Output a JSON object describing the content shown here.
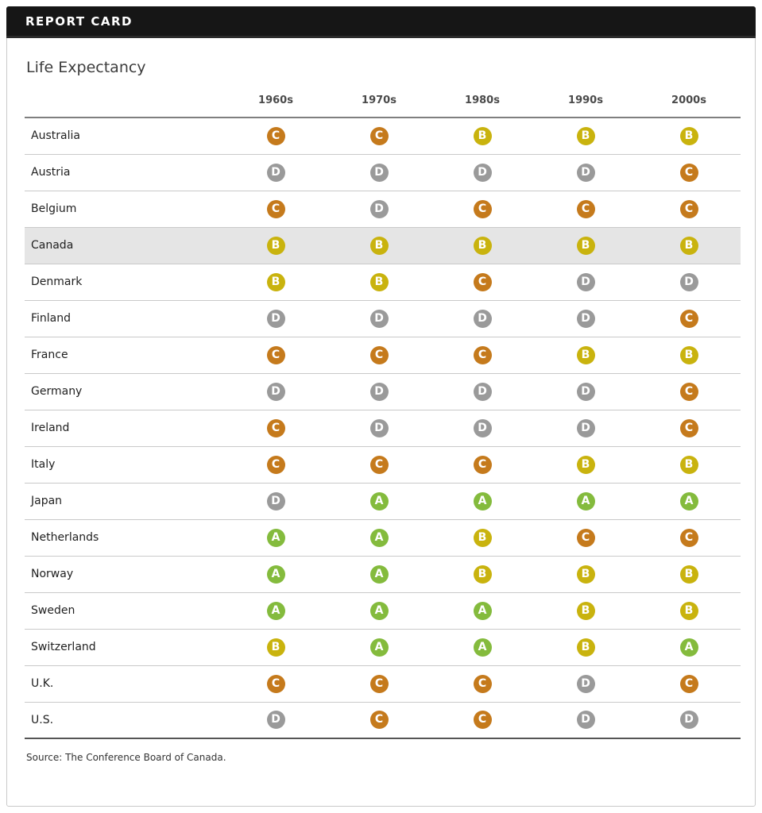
{
  "header": {
    "title": "REPORT CARD"
  },
  "card": {
    "title": "Life Expectancy",
    "source": "Source: The Conference Board of Canada."
  },
  "grade_colors": {
    "A": "#84BB3D",
    "B": "#C9B30E",
    "C": "#C57A1C",
    "D": "#9A9A9A"
  },
  "chart_data": {
    "type": "table",
    "title": "Life Expectancy",
    "columns": [
      "1960s",
      "1970s",
      "1980s",
      "1990s",
      "2000s"
    ],
    "rows": [
      {
        "country": "Australia",
        "grades": [
          "C",
          "C",
          "B",
          "B",
          "B"
        ],
        "highlighted": false
      },
      {
        "country": "Austria",
        "grades": [
          "D",
          "D",
          "D",
          "D",
          "C"
        ],
        "highlighted": false
      },
      {
        "country": "Belgium",
        "grades": [
          "C",
          "D",
          "C",
          "C",
          "C"
        ],
        "highlighted": false
      },
      {
        "country": "Canada",
        "grades": [
          "B",
          "B",
          "B",
          "B",
          "B"
        ],
        "highlighted": true
      },
      {
        "country": "Denmark",
        "grades": [
          "B",
          "B",
          "C",
          "D",
          "D"
        ],
        "highlighted": false
      },
      {
        "country": "Finland",
        "grades": [
          "D",
          "D",
          "D",
          "D",
          "C"
        ],
        "highlighted": false
      },
      {
        "country": "France",
        "grades": [
          "C",
          "C",
          "C",
          "B",
          "B"
        ],
        "highlighted": false
      },
      {
        "country": "Germany",
        "grades": [
          "D",
          "D",
          "D",
          "D",
          "C"
        ],
        "highlighted": false
      },
      {
        "country": "Ireland",
        "grades": [
          "C",
          "D",
          "D",
          "D",
          "C"
        ],
        "highlighted": false
      },
      {
        "country": "Italy",
        "grades": [
          "C",
          "C",
          "C",
          "B",
          "B"
        ],
        "highlighted": false
      },
      {
        "country": "Japan",
        "grades": [
          "D",
          "A",
          "A",
          "A",
          "A"
        ],
        "highlighted": false
      },
      {
        "country": "Netherlands",
        "grades": [
          "A",
          "A",
          "B",
          "C",
          "C"
        ],
        "highlighted": false
      },
      {
        "country": "Norway",
        "grades": [
          "A",
          "A",
          "B",
          "B",
          "B"
        ],
        "highlighted": false
      },
      {
        "country": "Sweden",
        "grades": [
          "A",
          "A",
          "A",
          "B",
          "B"
        ],
        "highlighted": false
      },
      {
        "country": "Switzerland",
        "grades": [
          "B",
          "A",
          "A",
          "B",
          "A"
        ],
        "highlighted": false
      },
      {
        "country": "U.K.",
        "grades": [
          "C",
          "C",
          "C",
          "D",
          "C"
        ],
        "highlighted": false
      },
      {
        "country": "U.S.",
        "grades": [
          "D",
          "C",
          "C",
          "D",
          "D"
        ],
        "highlighted": false
      }
    ]
  }
}
